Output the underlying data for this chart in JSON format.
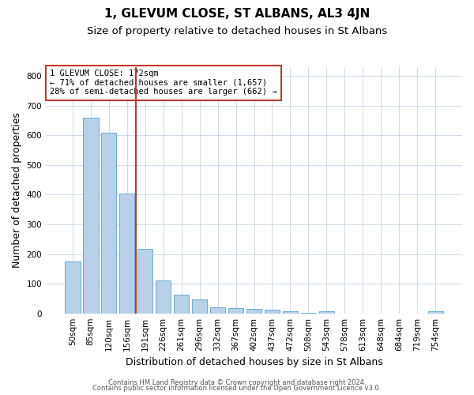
{
  "title": "1, GLEVUM CLOSE, ST ALBANS, AL3 4JN",
  "subtitle": "Size of property relative to detached houses in St Albans",
  "xlabel": "Distribution of detached houses by size in St Albans",
  "ylabel": "Number of detached properties",
  "bar_labels": [
    "50sqm",
    "85sqm",
    "120sqm",
    "156sqm",
    "191sqm",
    "226sqm",
    "261sqm",
    "296sqm",
    "332sqm",
    "367sqm",
    "402sqm",
    "437sqm",
    "472sqm",
    "508sqm",
    "543sqm",
    "578sqm",
    "613sqm",
    "648sqm",
    "684sqm",
    "719sqm",
    "754sqm"
  ],
  "bar_values": [
    175,
    660,
    610,
    405,
    218,
    110,
    63,
    46,
    20,
    17,
    15,
    13,
    8,
    1,
    8,
    0,
    0,
    0,
    0,
    0,
    8
  ],
  "bar_color": "#b8d0e8",
  "bar_edgecolor": "#6aaad4",
  "ylim": [
    0,
    830
  ],
  "yticks": [
    0,
    100,
    200,
    300,
    400,
    500,
    600,
    700,
    800
  ],
  "redline_x": 3.5,
  "redline_color": "#c0392b",
  "annotation_text": "1 GLEVUM CLOSE: 172sqm\n← 71% of detached houses are smaller (1,657)\n28% of semi-detached houses are larger (662) →",
  "annotation_box_color": "#ffffff",
  "annotation_box_edgecolor": "#c0392b",
  "background_color": "#ffffff",
  "grid_color": "#c8d4e8",
  "title_fontsize": 11,
  "subtitle_fontsize": 9.5,
  "axis_label_fontsize": 9,
  "tick_fontsize": 7.5,
  "annotation_fontsize": 7.5,
  "footer_line1": "Contains HM Land Registry data © Crown copyright and database right 2024.",
  "footer_line2": "Contains public sector information licensed under the Open Government Licence v3.0."
}
